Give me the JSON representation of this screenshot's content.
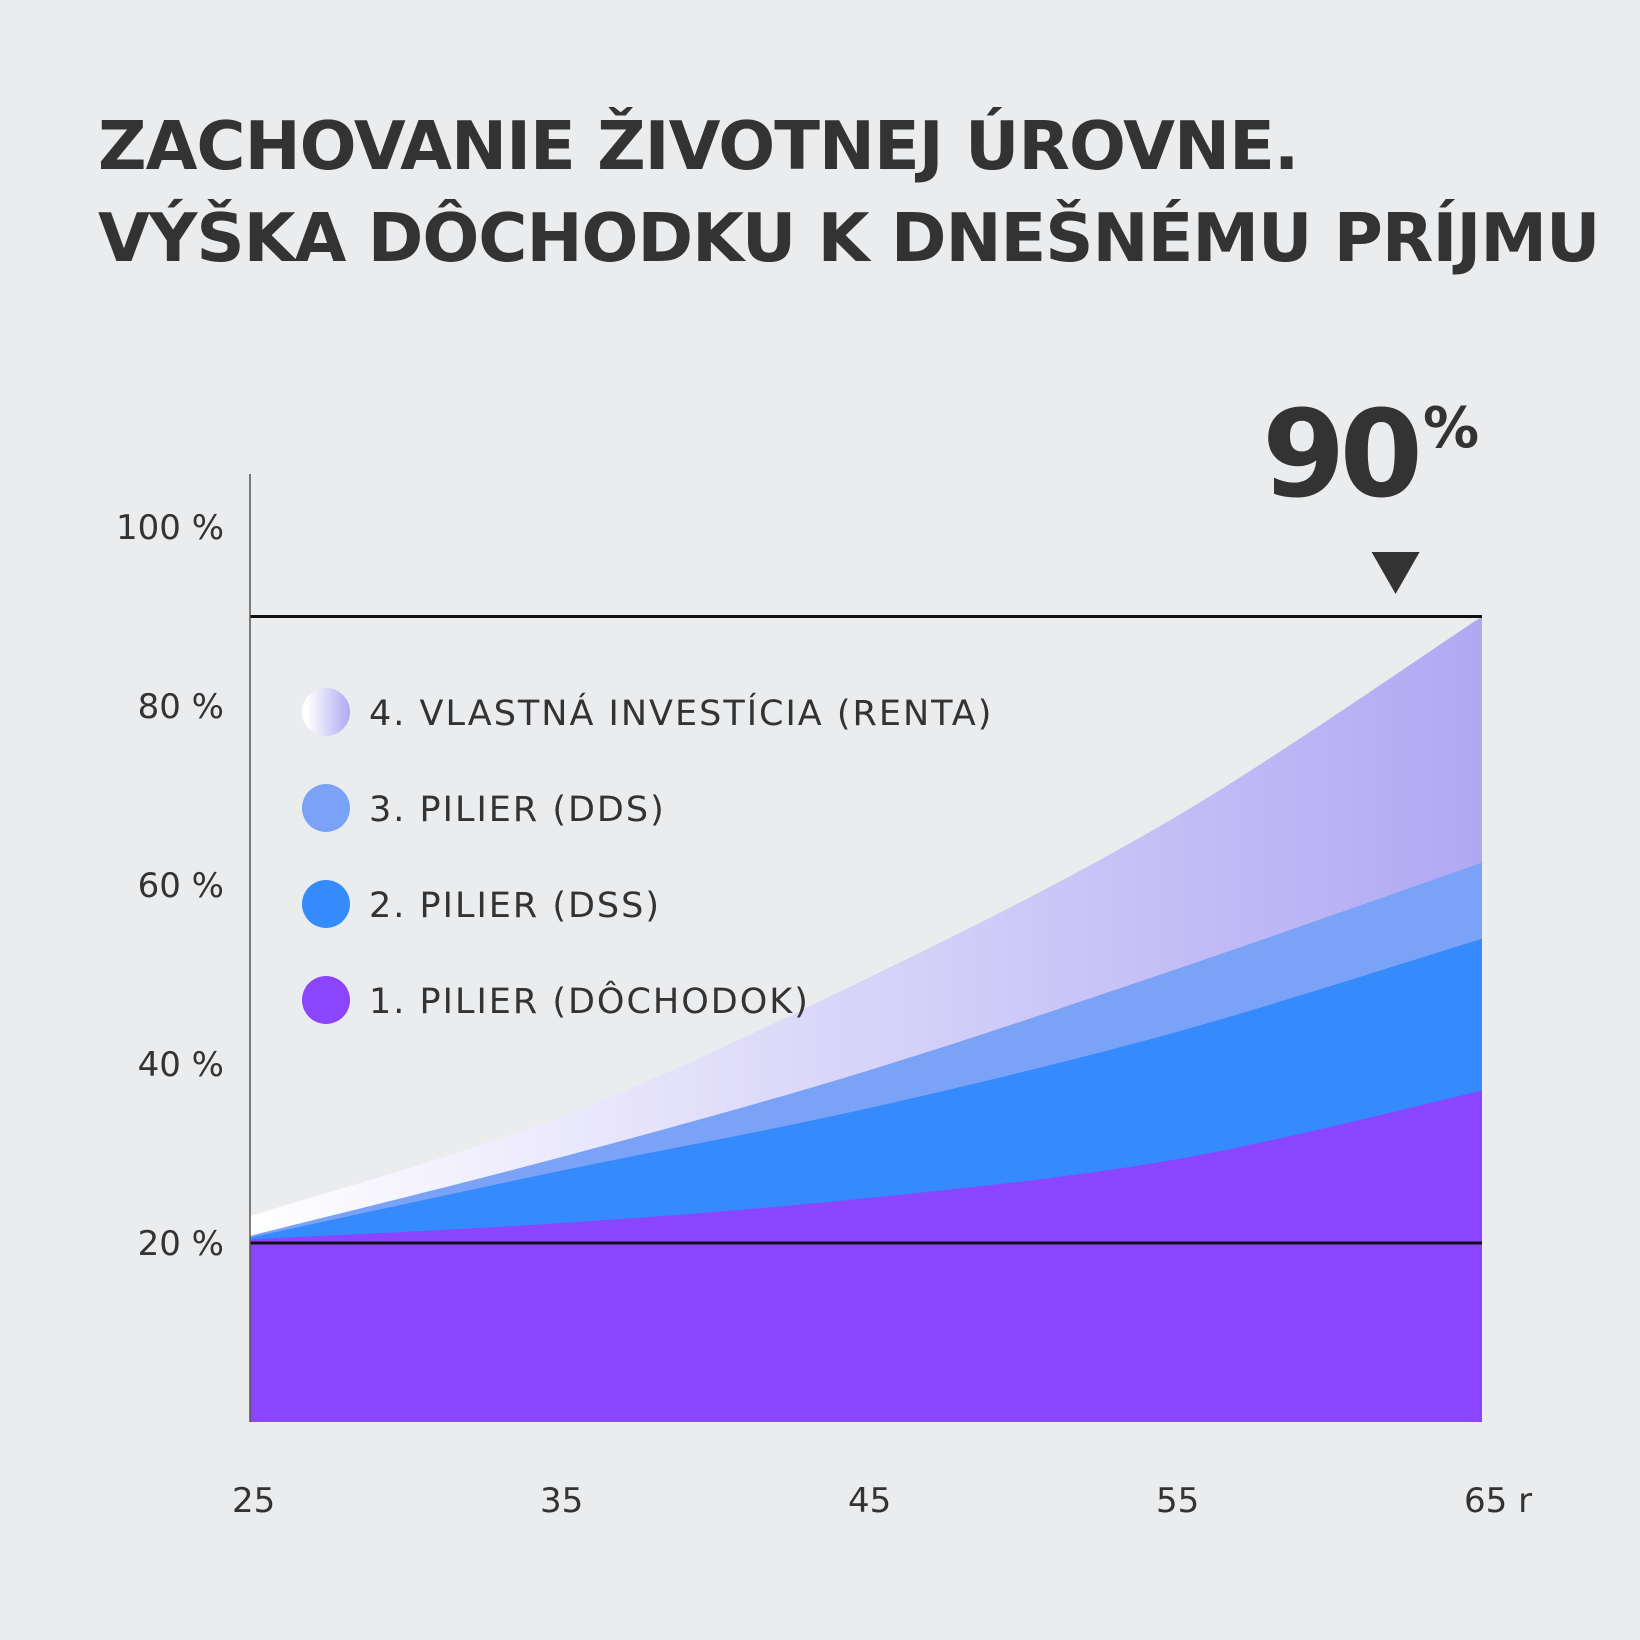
{
  "title": {
    "line1": "ZACHOVANIE ŽIVOTNEJ ÚROVNE.",
    "line2": "VÝŠKA DÔCHODKU K DNEŠNÉMU PRÍJMU"
  },
  "highlight": {
    "value": "90",
    "unit": "%"
  },
  "colors": {
    "background": "#ebecee",
    "text": "#333333",
    "pillar1": "#8a45fd",
    "pillar2": "#358afc",
    "pillar3": "#7aa2f6",
    "pillar4_start": "#ffffff",
    "pillar4_end": "#b0a8f3",
    "marker": "#333333"
  },
  "chart_data": {
    "type": "area",
    "stacked": true,
    "x": [
      25,
      35,
      45,
      55,
      65
    ],
    "xticks": [
      "25",
      "35",
      "45",
      "55",
      "65 r"
    ],
    "yticks": [
      "20 %",
      "40 %",
      "60 %",
      "80 %",
      "100 %"
    ],
    "ytick_values": [
      20,
      40,
      60,
      80,
      100
    ],
    "ylim": [
      0,
      104
    ],
    "xlim": [
      25,
      65
    ],
    "reference_lines": [
      20,
      90
    ],
    "highlight_x": 62,
    "series": [
      {
        "name": "1. PILIER (DÔCHODOK)",
        "top": [
          20.4,
          22.2,
          25.0,
          29.3,
          37.0
        ],
        "color": "#8a45fd"
      },
      {
        "name": "2. PILIER (DSS)",
        "top": [
          20.6,
          28.0,
          35.0,
          43.5,
          54.0
        ],
        "color": "#358afc"
      },
      {
        "name": "3. PILIER (DDS)",
        "top": [
          20.8,
          29.5,
          39.2,
          50.5,
          62.5
        ],
        "color": "#7aa2f6"
      },
      {
        "name": "4. VLASTNÁ INVESTÍCIA (RENTA)",
        "top": [
          23.0,
          34.0,
          49.5,
          67.5,
          90.0
        ],
        "color": "gradient"
      }
    ],
    "legend_order": [
      3,
      2,
      1,
      0
    ],
    "legend_position": "top-left",
    "grid": false
  }
}
